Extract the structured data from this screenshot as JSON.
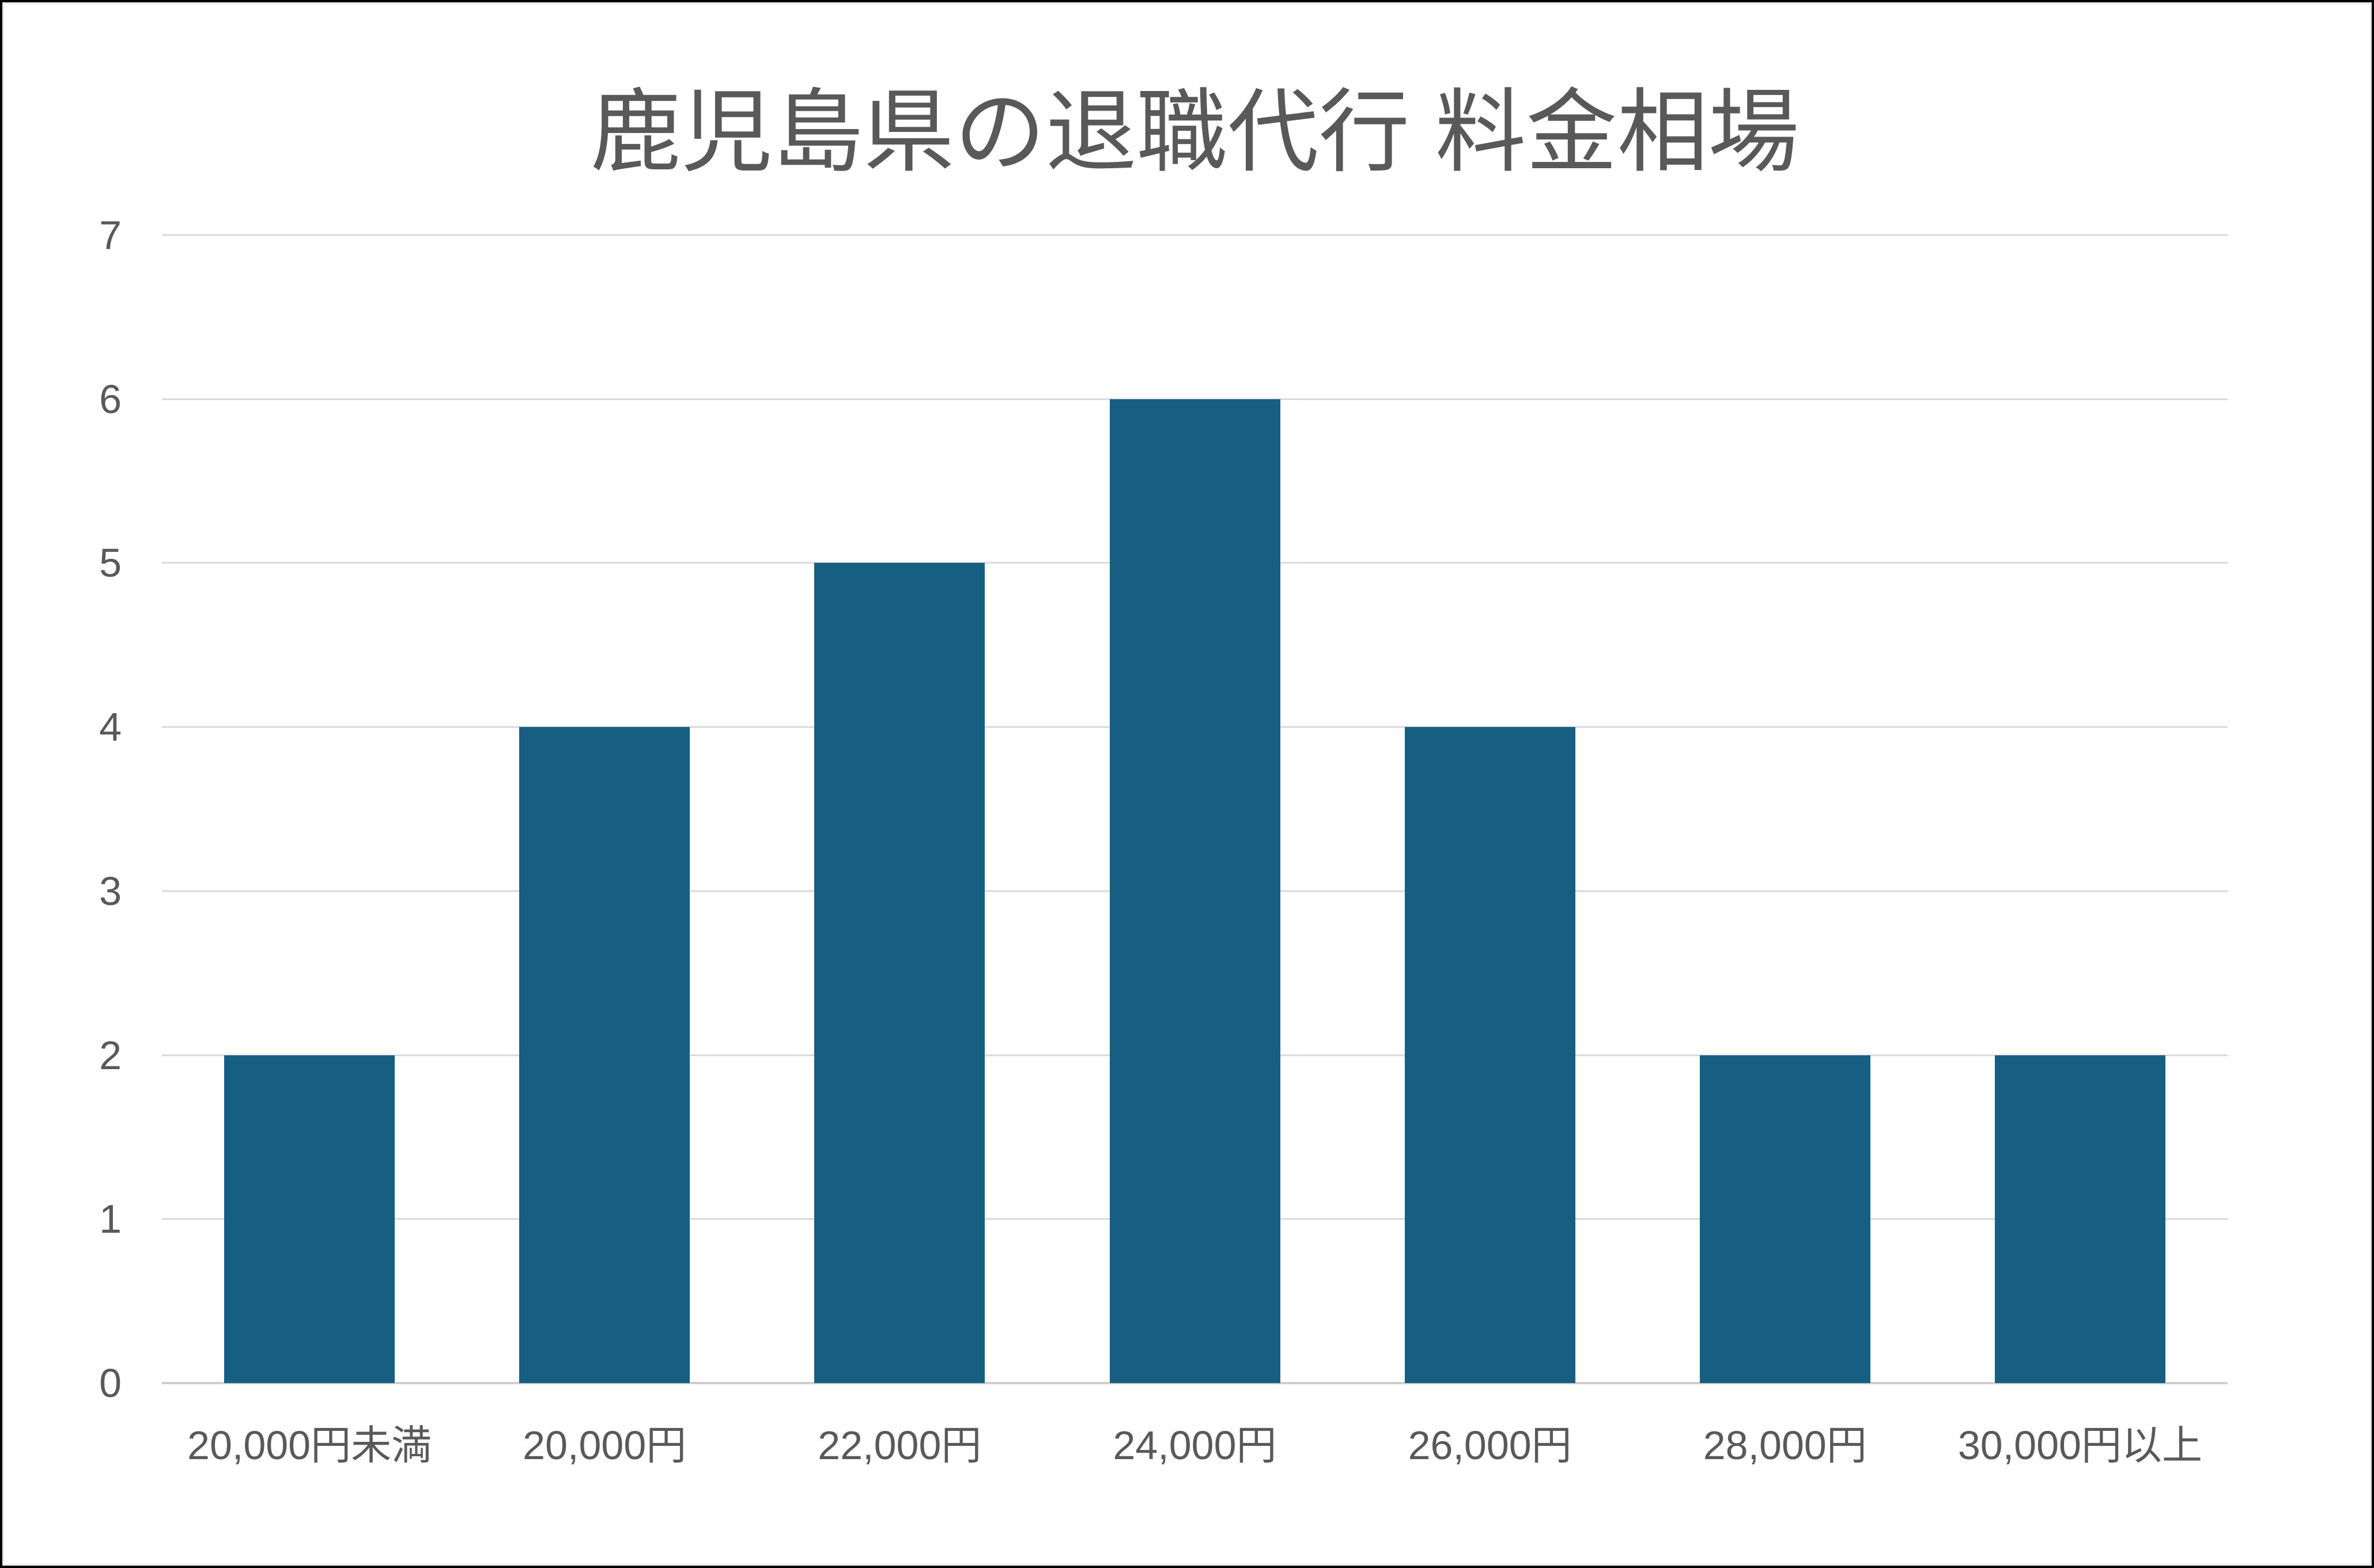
{
  "chart_data": {
    "type": "bar",
    "title": "鹿児島県の退職代行 料金相場",
    "categories": [
      "20,000円未満",
      "20,000円",
      "22,000円",
      "24,000円",
      "26,000円",
      "28,000円",
      "30,000円以上"
    ],
    "values": [
      2,
      4,
      5,
      6,
      4,
      2,
      2
    ],
    "xlabel": "",
    "ylabel": "",
    "ylim": [
      0,
      7
    ],
    "yticks": [
      0,
      1,
      2,
      3,
      4,
      5,
      6,
      7
    ],
    "grid": true,
    "legend": false,
    "colors": {
      "bar_fill": "#165E82",
      "text": "#595959",
      "gridline": "#D9D9D9",
      "axis_line": "#D0CECE",
      "background": "#FFFFFF",
      "frame_border": "#000000"
    },
    "layout": {
      "bar_width_ratio": 0.578,
      "legend_position": "none",
      "grid_axis": "y"
    }
  }
}
